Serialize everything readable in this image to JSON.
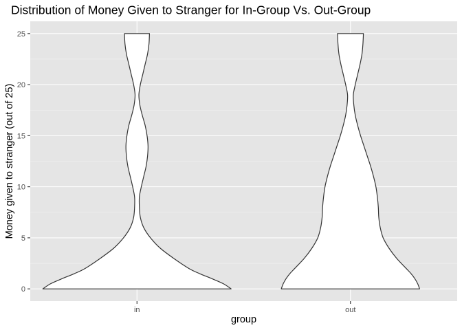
{
  "chart_data": {
    "type": "violin",
    "title": "Distribution of Money Given to Stranger for In-Group Vs. Out-Group",
    "xlabel": "group",
    "ylabel": "Money given to stranger (out of 25)",
    "categories": [
      "in",
      "out"
    ],
    "ylim": [
      -1.2,
      26.2
    ],
    "yticks": [
      0,
      5,
      10,
      15,
      20,
      25
    ],
    "grid": true,
    "legend": "none",
    "violins": [
      {
        "category": "in",
        "density_profile": [
          [
            0,
            0.98
          ],
          [
            0.5,
            0.9
          ],
          [
            1,
            0.78
          ],
          [
            1.5,
            0.65
          ],
          [
            2,
            0.54
          ],
          [
            3,
            0.38
          ],
          [
            4,
            0.24
          ],
          [
            5,
            0.14
          ],
          [
            6,
            0.07
          ],
          [
            7,
            0.035
          ],
          [
            8,
            0.025
          ],
          [
            9,
            0.025
          ],
          [
            10,
            0.045
          ],
          [
            11,
            0.07
          ],
          [
            12,
            0.095
          ],
          [
            13,
            0.11
          ],
          [
            14,
            0.115
          ],
          [
            15,
            0.105
          ],
          [
            16,
            0.085
          ],
          [
            17,
            0.055
          ],
          [
            18,
            0.03
          ],
          [
            19,
            0.02
          ],
          [
            20,
            0.035
          ],
          [
            21,
            0.06
          ],
          [
            22,
            0.085
          ],
          [
            23,
            0.11
          ],
          [
            24,
            0.125
          ],
          [
            25,
            0.13
          ]
        ]
      },
      {
        "category": "out",
        "density_profile": [
          [
            0,
            0.72
          ],
          [
            0.5,
            0.7
          ],
          [
            1,
            0.67
          ],
          [
            1.5,
            0.63
          ],
          [
            2,
            0.58
          ],
          [
            3,
            0.48
          ],
          [
            4,
            0.4
          ],
          [
            5,
            0.34
          ],
          [
            6,
            0.31
          ],
          [
            7,
            0.295
          ],
          [
            8,
            0.29
          ],
          [
            9,
            0.28
          ],
          [
            10,
            0.265
          ],
          [
            11,
            0.24
          ],
          [
            12,
            0.21
          ],
          [
            13,
            0.175
          ],
          [
            14,
            0.14
          ],
          [
            15,
            0.105
          ],
          [
            16,
            0.075
          ],
          [
            17,
            0.05
          ],
          [
            18,
            0.035
          ],
          [
            19,
            0.03
          ],
          [
            20,
            0.05
          ],
          [
            21,
            0.075
          ],
          [
            22,
            0.1
          ],
          [
            23,
            0.12
          ],
          [
            24,
            0.13
          ],
          [
            25,
            0.135
          ]
        ]
      }
    ]
  },
  "colors": {
    "panel_background": "#e5e5e5",
    "grid_major": "#ffffff",
    "grid_minor": "#f2f2f2",
    "violin_fill": "#ffffff",
    "violin_stroke": "#333333"
  }
}
